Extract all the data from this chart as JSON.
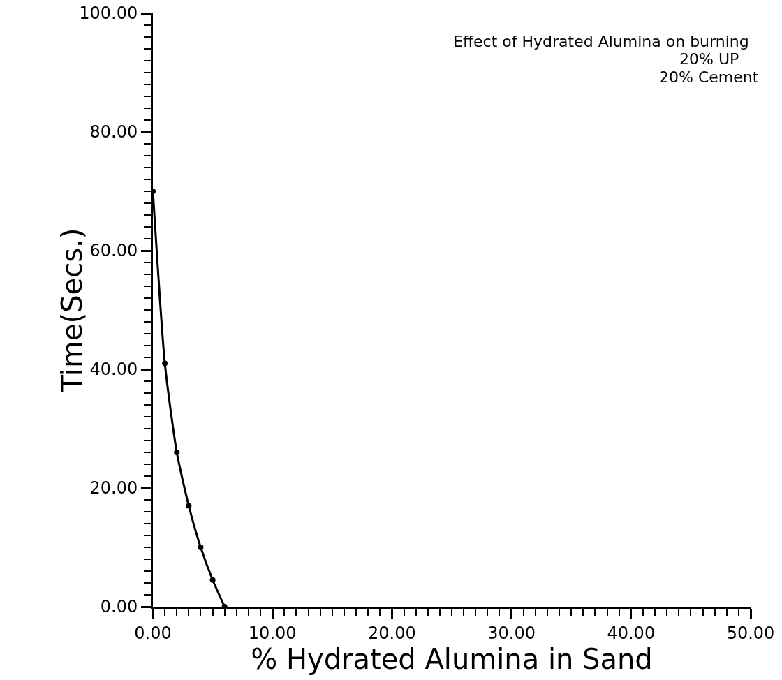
{
  "chart_data": {
    "type": "line",
    "title": "Effect of Hydrated Alumina on burning",
    "annotations": [
      "20% UP",
      "20% Cement"
    ],
    "xlabel": "% Hydrated Alumina in Sand",
    "ylabel": "Time(Secs.)",
    "x": [
      0,
      1,
      2,
      3,
      4,
      5,
      6
    ],
    "series": [
      {
        "color": "#000000",
        "values": [
          70,
          41,
          26,
          17,
          10,
          4.5,
          0
        ]
      }
    ],
    "xlim": [
      0,
      50
    ],
    "ylim": [
      0,
      100
    ],
    "xticks": [
      {
        "value": 0,
        "label": "0.00"
      },
      {
        "value": 10,
        "label": "10.00"
      },
      {
        "value": 20,
        "label": "20.00"
      },
      {
        "value": 30,
        "label": "30.00"
      },
      {
        "value": 40,
        "label": "40.00"
      },
      {
        "value": 50,
        "label": "50.00"
      }
    ],
    "yticks": [
      {
        "value": 0,
        "label": "0.00"
      },
      {
        "value": 20,
        "label": "20.00"
      },
      {
        "value": 40,
        "label": "40.00"
      },
      {
        "value": 60,
        "label": "60.00"
      },
      {
        "value": 80,
        "label": "80.00"
      },
      {
        "value": 100,
        "label": "100.00"
      }
    ],
    "marker": "circle",
    "line_style": "solid"
  }
}
